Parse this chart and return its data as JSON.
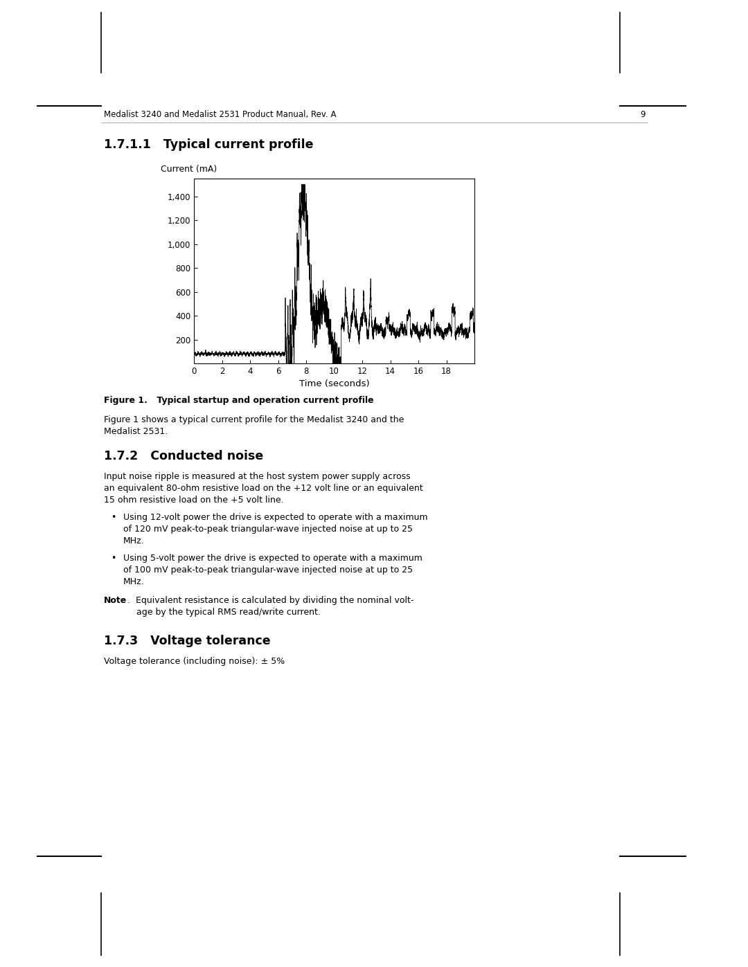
{
  "page_header": "Medalist 3240 and Medalist 2531 Product Manual, Rev. A",
  "page_number": "9",
  "section_title": "1.7.1.1   Typical current profile",
  "ylabel": "Current (mA)",
  "xlabel": "Time (seconds)",
  "figure_caption_bold": "Figure 1.",
  "figure_caption_rest": "  Typical startup and operation current profile",
  "figure_desc": "Figure 1 shows a typical current profile for the Medalist 3240 and the\nMedalist 2531.",
  "section2_title": "1.7.2   Conducted noise",
  "section2_body_line1": "Input noise ripple is measured at the host system power supply across",
  "section2_body_line2": "an equivalent 80-ohm resistive load on the +12 volt line or an equivalent",
  "section2_body_line3": "15 ohm resistive load on the +5 volt line.",
  "bullet1_line1": "Using 12-volt power the drive is expected to operate with a maximum",
  "bullet1_line2": "of 120 mV peak-to-peak triangular-wave injected noise at up to 25",
  "bullet1_line3": "MHz.",
  "bullet2_line1": "Using 5-volt power the drive is expected to operate with a maximum",
  "bullet2_line2": "of 100 mV peak-to-peak triangular-wave injected noise at up to 25",
  "bullet2_line3": "MHz.",
  "note_label": "Note",
  "note_body_line1": "Equivalent resistance is calculated by dividing the nominal volt-",
  "note_body_line2": "age by the typical RMS read/write current.",
  "section3_title": "1.7.3   Voltage tolerance",
  "section3_body": "Voltage tolerance (including noise): ± 5%",
  "bg_color": "#ffffff",
  "text_color": "#000000",
  "plot_bg": "#ffffff",
  "line_color": "#000000",
  "yticks": [
    200,
    400,
    600,
    800,
    1000,
    1200,
    1400
  ],
  "xticks": [
    0,
    2,
    4,
    6,
    8,
    10,
    12,
    14,
    16,
    18
  ],
  "xmin": 0,
  "xmax": 20,
  "ymin": 0,
  "ymax": 1550
}
